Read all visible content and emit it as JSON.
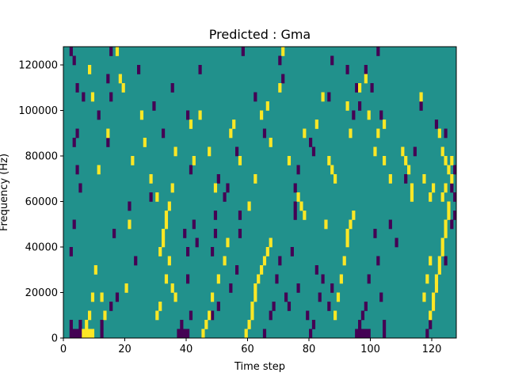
{
  "chart_data": {
    "type": "heatmap",
    "title": "Predicted : Gma",
    "xlabel": "Time step",
    "ylabel": "Frequency (Hz)",
    "xlim": [
      0,
      128
    ],
    "ylim": [
      0,
      128000
    ],
    "x_ticks": [
      0,
      20,
      40,
      60,
      80,
      100,
      120
    ],
    "y_ticks": [
      0,
      20000,
      40000,
      60000,
      80000,
      100000,
      120000
    ],
    "x_tick_labels": [
      "0",
      "20",
      "40",
      "60",
      "80",
      "100",
      "120"
    ],
    "y_tick_labels": [
      "0",
      "20000",
      "40000",
      "60000",
      "80000",
      "100000",
      "120000"
    ],
    "cell_height_hz": 4000,
    "grid": false,
    "colors": {
      "background": "#21918c",
      "low": "#440154",
      "high": "#fde725"
    },
    "low_cells": [
      [
        2,
        0
      ],
      [
        3,
        0
      ],
      [
        4,
        0
      ],
      [
        5,
        0
      ],
      [
        2,
        1
      ],
      [
        5,
        1
      ],
      [
        12,
        0
      ],
      [
        12,
        1
      ],
      [
        15,
        3
      ],
      [
        16,
        11
      ],
      [
        17,
        4
      ],
      [
        21,
        14
      ],
      [
        23,
        8
      ],
      [
        37,
        0
      ],
      [
        38,
        0
      ],
      [
        39,
        0
      ],
      [
        40,
        0
      ],
      [
        38,
        1
      ],
      [
        41,
        2
      ],
      [
        39,
        11
      ],
      [
        40,
        9
      ],
      [
        40,
        6
      ],
      [
        41,
        18
      ],
      [
        42,
        12
      ],
      [
        43,
        10
      ],
      [
        48,
        2
      ],
      [
        50,
        3
      ],
      [
        48,
        9
      ],
      [
        49,
        11
      ],
      [
        49,
        13
      ],
      [
        52,
        15
      ],
      [
        54,
        5
      ],
      [
        56,
        7
      ],
      [
        57,
        11
      ],
      [
        57,
        13
      ],
      [
        65,
        0
      ],
      [
        67,
        2
      ],
      [
        68,
        3
      ],
      [
        69,
        6
      ],
      [
        70,
        8
      ],
      [
        72,
        4
      ],
      [
        73,
        3
      ],
      [
        74,
        9
      ],
      [
        75,
        14
      ],
      [
        75,
        13
      ],
      [
        76,
        5
      ],
      [
        79,
        2
      ],
      [
        80,
        0
      ],
      [
        81,
        1
      ],
      [
        82,
        7
      ],
      [
        83,
        4
      ],
      [
        84,
        6
      ],
      [
        86,
        3
      ],
      [
        87,
        5
      ],
      [
        95,
        0
      ],
      [
        96,
        0
      ],
      [
        97,
        0
      ],
      [
        98,
        0
      ],
      [
        99,
        0
      ],
      [
        96,
        1
      ],
      [
        97,
        2
      ],
      [
        98,
        3
      ],
      [
        99,
        6
      ],
      [
        101,
        11
      ],
      [
        102,
        8
      ],
      [
        103,
        4
      ],
      [
        104,
        0
      ],
      [
        104,
        1
      ],
      [
        118,
        0
      ],
      [
        119,
        1
      ],
      [
        120,
        3
      ],
      [
        121,
        5
      ],
      [
        124,
        8
      ],
      [
        126,
        12
      ],
      [
        127,
        15
      ],
      [
        126,
        16
      ],
      [
        127,
        18
      ],
      [
        127,
        13
      ],
      [
        3,
        21
      ],
      [
        4,
        22
      ],
      [
        5,
        16
      ],
      [
        4,
        18
      ],
      [
        2,
        9
      ],
      [
        3,
        12
      ],
      [
        6,
        26
      ],
      [
        4,
        27
      ],
      [
        3,
        30
      ],
      [
        2,
        31
      ],
      [
        14,
        28
      ],
      [
        15,
        26
      ],
      [
        14,
        21
      ],
      [
        11,
        24
      ],
      [
        15,
        31
      ],
      [
        24,
        29
      ],
      [
        28,
        15
      ],
      [
        29,
        25
      ],
      [
        32,
        22
      ],
      [
        35,
        27
      ],
      [
        40,
        24
      ],
      [
        44,
        29
      ],
      [
        50,
        17
      ],
      [
        53,
        16
      ],
      [
        56,
        20
      ],
      [
        58,
        31
      ],
      [
        62,
        26
      ],
      [
        65,
        22
      ],
      [
        70,
        30
      ],
      [
        71,
        28
      ],
      [
        75,
        16
      ],
      [
        76,
        18
      ],
      [
        80,
        21
      ],
      [
        81,
        20
      ],
      [
        86,
        26
      ],
      [
        87,
        30
      ],
      [
        92,
        29
      ],
      [
        94,
        24
      ],
      [
        95,
        27
      ],
      [
        96,
        25
      ],
      [
        98,
        29
      ],
      [
        100,
        27
      ],
      [
        102,
        31
      ],
      [
        103,
        24
      ],
      [
        106,
        12
      ],
      [
        108,
        10
      ],
      [
        111,
        17
      ],
      [
        114,
        20
      ],
      [
        116,
        25
      ],
      [
        121,
        23
      ],
      [
        124,
        22
      ]
    ],
    "high_cells": [
      [
        6,
        0
      ],
      [
        7,
        0
      ],
      [
        8,
        0
      ],
      [
        9,
        0
      ],
      [
        7,
        1
      ],
      [
        8,
        2
      ],
      [
        9,
        4
      ],
      [
        10,
        7
      ],
      [
        12,
        4
      ],
      [
        13,
        2
      ],
      [
        20,
        5
      ],
      [
        21,
        12
      ],
      [
        22,
        19
      ],
      [
        30,
        2
      ],
      [
        31,
        3
      ],
      [
        31,
        9
      ],
      [
        32,
        10
      ],
      [
        32,
        11
      ],
      [
        33,
        12
      ],
      [
        33,
        13
      ],
      [
        34,
        14
      ],
      [
        35,
        16
      ],
      [
        34,
        8
      ],
      [
        33,
        6
      ],
      [
        35,
        5
      ],
      [
        36,
        4
      ],
      [
        45,
        0
      ],
      [
        46,
        1
      ],
      [
        47,
        2
      ],
      [
        48,
        4
      ],
      [
        50,
        6
      ],
      [
        52,
        8
      ],
      [
        53,
        10
      ],
      [
        59,
        0
      ],
      [
        60,
        1
      ],
      [
        61,
        2
      ],
      [
        61,
        3
      ],
      [
        62,
        4
      ],
      [
        62,
        5
      ],
      [
        63,
        6
      ],
      [
        64,
        7
      ],
      [
        65,
        8
      ],
      [
        66,
        9
      ],
      [
        67,
        10
      ],
      [
        77,
        14
      ],
      [
        78,
        13
      ],
      [
        85,
        12
      ],
      [
        88,
        2
      ],
      [
        89,
        4
      ],
      [
        90,
        6
      ],
      [
        91,
        8
      ],
      [
        92,
        10
      ],
      [
        92,
        11
      ],
      [
        93,
        12
      ],
      [
        94,
        13
      ],
      [
        119,
        2
      ],
      [
        120,
        3
      ],
      [
        120,
        4
      ],
      [
        121,
        5
      ],
      [
        121,
        6
      ],
      [
        122,
        7
      ],
      [
        122,
        8
      ],
      [
        123,
        9
      ],
      [
        123,
        10
      ],
      [
        124,
        11
      ],
      [
        124,
        12
      ],
      [
        125,
        13
      ],
      [
        125,
        14
      ],
      [
        117,
        4
      ],
      [
        118,
        6
      ],
      [
        119,
        8
      ],
      [
        123,
        15
      ],
      [
        124,
        16
      ],
      [
        126,
        17
      ],
      [
        126,
        19
      ],
      [
        8,
        29
      ],
      [
        9,
        26
      ],
      [
        11,
        18
      ],
      [
        14,
        22
      ],
      [
        17,
        31
      ],
      [
        18,
        28
      ],
      [
        19,
        27
      ],
      [
        25,
        24
      ],
      [
        26,
        21
      ],
      [
        28,
        17
      ],
      [
        30,
        15
      ],
      [
        36,
        20
      ],
      [
        41,
        23
      ],
      [
        42,
        19
      ],
      [
        44,
        24
      ],
      [
        47,
        20
      ],
      [
        49,
        16
      ],
      [
        54,
        22
      ],
      [
        55,
        23
      ],
      [
        57,
        19
      ],
      [
        60,
        14
      ],
      [
        62,
        17
      ],
      [
        64,
        24
      ],
      [
        66,
        25
      ],
      [
        67,
        21
      ],
      [
        70,
        27
      ],
      [
        71,
        31
      ],
      [
        73,
        19
      ],
      [
        76,
        15
      ],
      [
        78,
        22
      ],
      [
        82,
        23
      ],
      [
        84,
        26
      ],
      [
        86,
        19
      ],
      [
        87,
        18
      ],
      [
        88,
        17
      ],
      [
        92,
        25
      ],
      [
        93,
        22
      ],
      [
        96,
        27
      ],
      [
        98,
        28
      ],
      [
        99,
        24
      ],
      [
        101,
        20
      ],
      [
        102,
        22
      ],
      [
        104,
        23
      ],
      [
        104,
        19
      ],
      [
        106,
        17
      ],
      [
        110,
        20
      ],
      [
        111,
        19
      ],
      [
        112,
        18
      ],
      [
        113,
        16
      ],
      [
        113,
        15
      ],
      [
        116,
        26
      ],
      [
        117,
        17
      ],
      [
        119,
        15
      ],
      [
        120,
        16
      ],
      [
        122,
        22
      ],
      [
        123,
        20
      ],
      [
        124,
        19
      ],
      [
        125,
        18
      ]
    ]
  }
}
